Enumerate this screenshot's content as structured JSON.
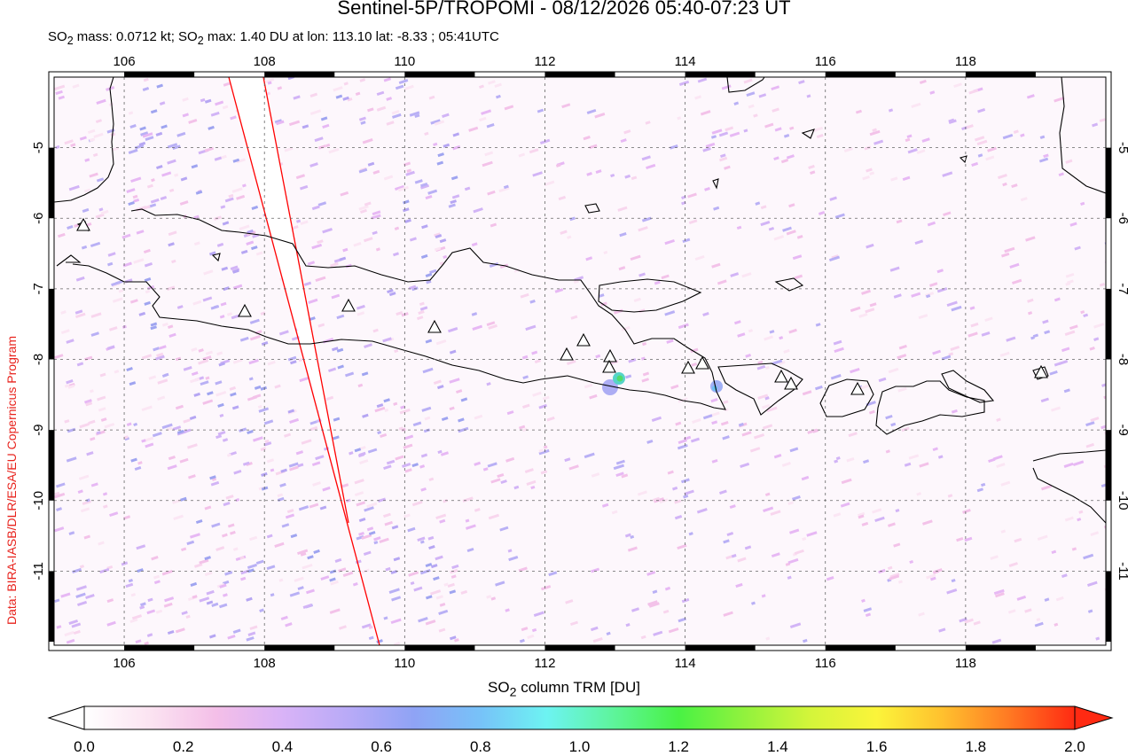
{
  "title": "Sentinel-5P/TROPOMI - 08/12/2026 05:40-07:23 UT",
  "subtitle": {
    "p1": "SO",
    "s1": "2",
    "p2": " mass: 0.0712 kt; SO",
    "s2": "2",
    "p3": " max: 1.40 DU at lon: 113.10 lat: -8.33 ; 05:41UTC"
  },
  "credit": "Data: BIRA-IASB/DLR/ESA/EU Copernicus Program",
  "map": {
    "lon_range": [
      105,
      120
    ],
    "lat_range": [
      -12.05,
      -4.0
    ],
    "lon_ticks": [
      "106",
      "108",
      "110",
      "112",
      "114",
      "116",
      "118"
    ],
    "lat_ticks": [
      "-5",
      "-6",
      "-7",
      "-8",
      "-9",
      "-10",
      "-11"
    ],
    "volcano_icon": "triangle-icon",
    "swath_edge_color": "#ff0000",
    "so2_max": {
      "value_du": 1.4,
      "lon": 113.1,
      "lat": -8.33
    }
  },
  "colorbar": {
    "title_main": "SO",
    "title_sub": "2",
    "title_rest": " column TRM [DU]",
    "ticks": [
      "0.0",
      "0.2",
      "0.4",
      "0.6",
      "0.8",
      "1.0",
      "1.2",
      "1.4",
      "1.6",
      "1.8",
      "2.0"
    ],
    "colors": [
      "#ffffff",
      "#fbe3f1",
      "#f4bfe8",
      "#d9b3f7",
      "#b8aaf7",
      "#8fa3f5",
      "#77c2f8",
      "#6df3f2",
      "#5ef49d",
      "#49f244",
      "#92f23d",
      "#d4f53a",
      "#fbf43a",
      "#ffc02e",
      "#ff7a23",
      "#ff2a12"
    ]
  }
}
